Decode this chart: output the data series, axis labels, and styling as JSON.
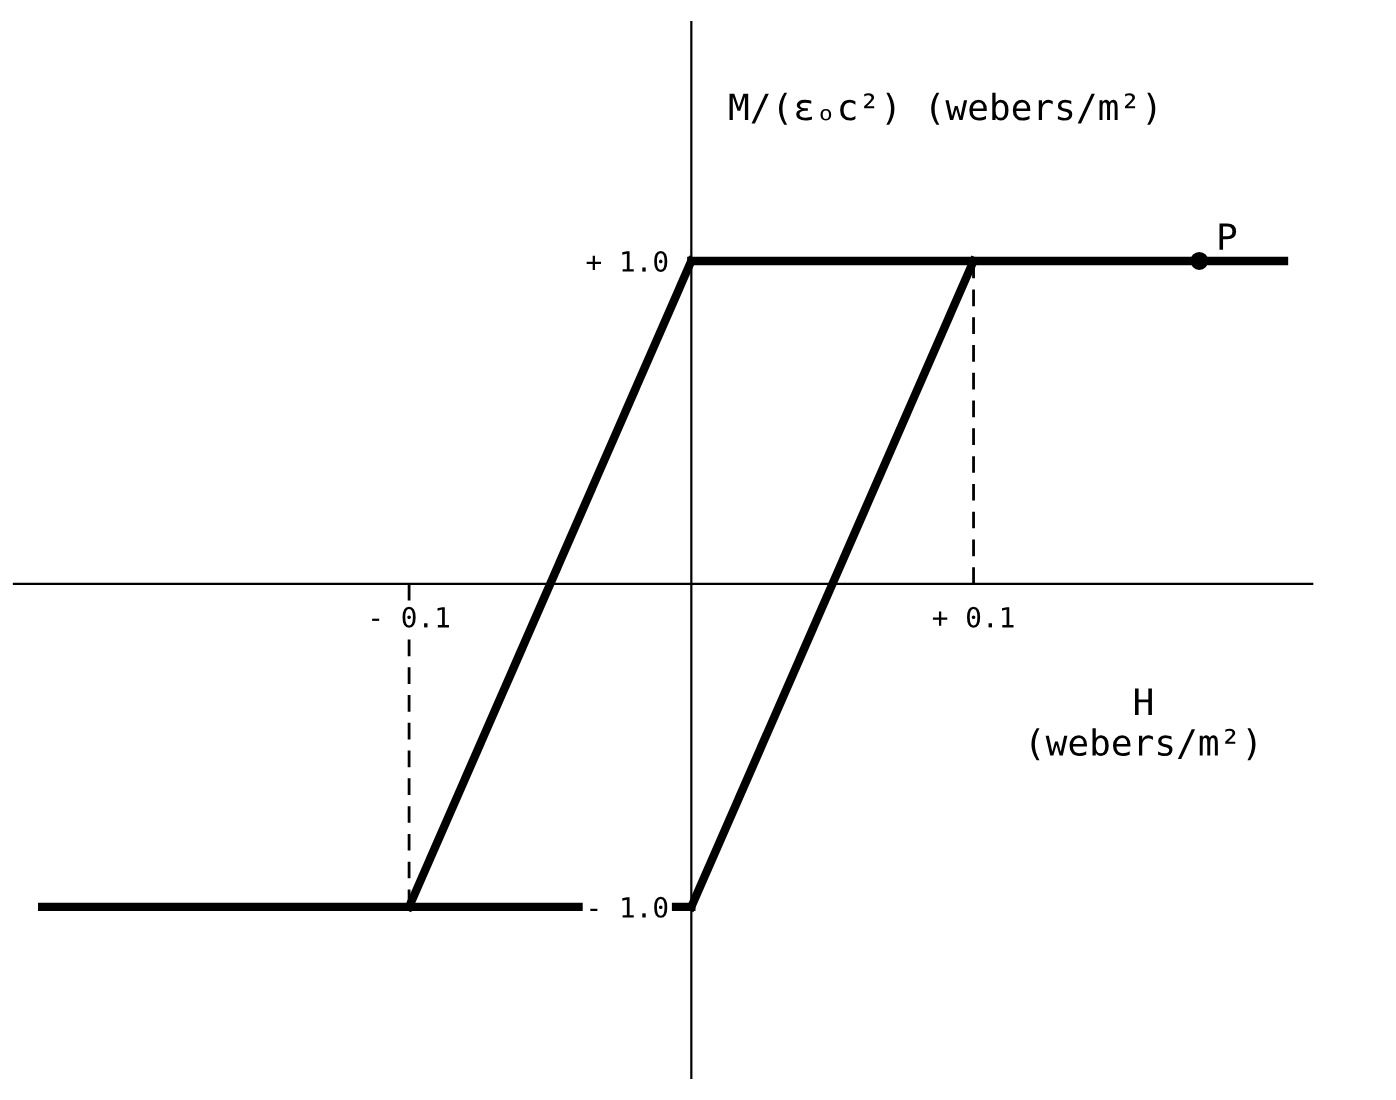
{
  "chart_data": {
    "type": "line",
    "xlabel": "H\n(webers/m²)",
    "ylabel": "M/(εₒc²) (webers/m²)",
    "xlim": [
      -0.24,
      0.22
    ],
    "ylim": [
      -1.53,
      1.74
    ],
    "xticks": [
      {
        "value": -0.1,
        "label": "- 0.1"
      },
      {
        "value": 0.1,
        "label": "+ 0.1"
      }
    ],
    "yticks": [
      {
        "value": -1.0,
        "label": "- 1.0"
      },
      {
        "value": 1.0,
        "label": "+ 1.0"
      }
    ],
    "grid": false,
    "legend": false,
    "series": [
      {
        "color": "#000000",
        "x": [
          -0.23,
          0
        ],
        "values": [
          -1,
          -1
        ],
        "line_style": "solid"
      },
      {
        "color": "#000000",
        "x": [
          -0.1,
          0
        ],
        "values": [
          -1,
          1
        ],
        "line_style": "solid"
      },
      {
        "color": "#000000",
        "x": [
          0,
          0.1
        ],
        "values": [
          -1,
          1
        ],
        "line_style": "solid"
      },
      {
        "color": "#000000",
        "x": [
          0,
          0.21
        ],
        "values": [
          1,
          1
        ],
        "line_style": "solid"
      },
      {
        "color": "#000000",
        "x": [
          -0.1,
          -0.1
        ],
        "values": [
          0,
          -1
        ],
        "line_style": "dashed"
      },
      {
        "color": "#000000",
        "x": [
          0.1,
          0.1
        ],
        "values": [
          0,
          1
        ],
        "line_style": "dashed"
      },
      {
        "type": "scatter",
        "color": "#000000",
        "x": [
          0.18
        ],
        "values": [
          1
        ],
        "marker": "circle"
      }
    ],
    "annotations": [
      {
        "text": "P",
        "x": 0.18,
        "y": 1
      }
    ]
  }
}
